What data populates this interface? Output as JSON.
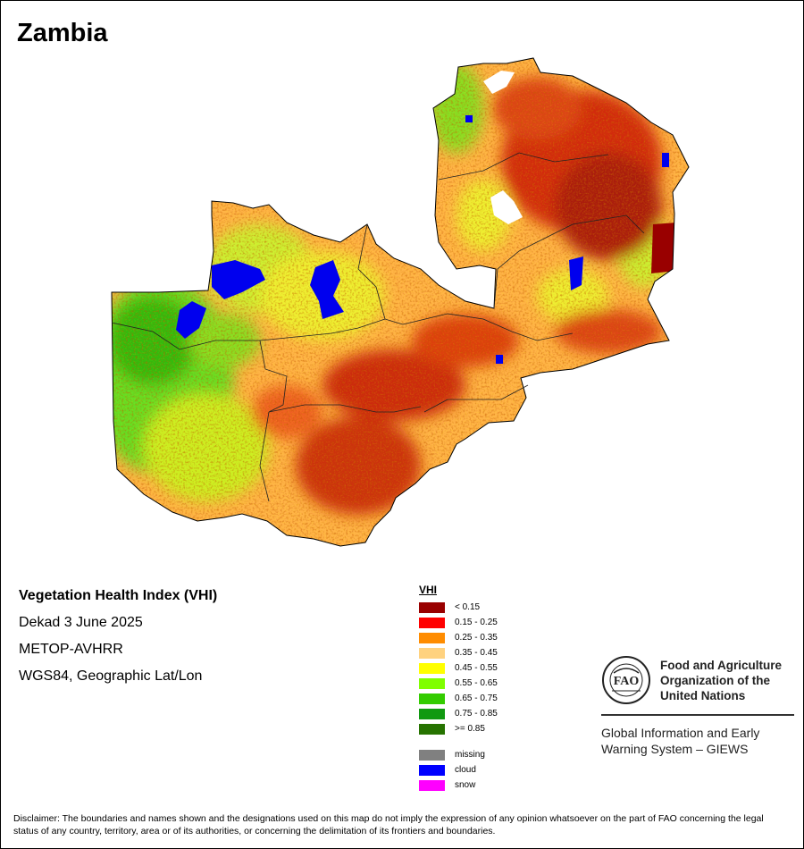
{
  "map": {
    "title": "Zambia"
  },
  "info": {
    "index_name": "Vegetation Health Index (VHI)",
    "period": "Dekad 3 June 2025",
    "sensor": "METOP-AVHRR",
    "projection": "WGS84, Geographic Lat/Lon"
  },
  "legend": {
    "title": "VHI",
    "classes": [
      {
        "label": "< 0.15",
        "color": "#990000"
      },
      {
        "label": "0.15 - 0.25",
        "color": "#ff0000"
      },
      {
        "label": "0.25 - 0.35",
        "color": "#ff8c00"
      },
      {
        "label": "0.35 - 0.45",
        "color": "#ffd27f"
      },
      {
        "label": "0.45 - 0.55",
        "color": "#ffff00"
      },
      {
        "label": "0.55 - 0.65",
        "color": "#80ff00"
      },
      {
        "label": "0.65 - 0.75",
        "color": "#33cc00"
      },
      {
        "label": "0.75 - 0.85",
        "color": "#119911"
      },
      {
        "label": ">= 0.85",
        "color": "#267300"
      }
    ],
    "special": [
      {
        "label": "missing",
        "color": "#808080"
      },
      {
        "label": "cloud",
        "color": "#0000ff"
      },
      {
        "label": "snow",
        "color": "#ff00ff"
      }
    ]
  },
  "logo": {
    "emblem_icon": "fao-emblem-icon",
    "org_line1": "Food and Agriculture",
    "org_line2": "Organization of the",
    "org_line3": "United Nations",
    "giews_line1": "Global Information and Early",
    "giews_line2": "Warning System – GIEWS"
  },
  "disclaimer": "Disclaimer: The boundaries and names shown and the designations used on this map do not imply the expression of any opinion whatsoever on the part of FAO concerning the legal status of any country, territory, area or of its authorities, or concerning the delimitation of its frontiers and boundaries."
}
